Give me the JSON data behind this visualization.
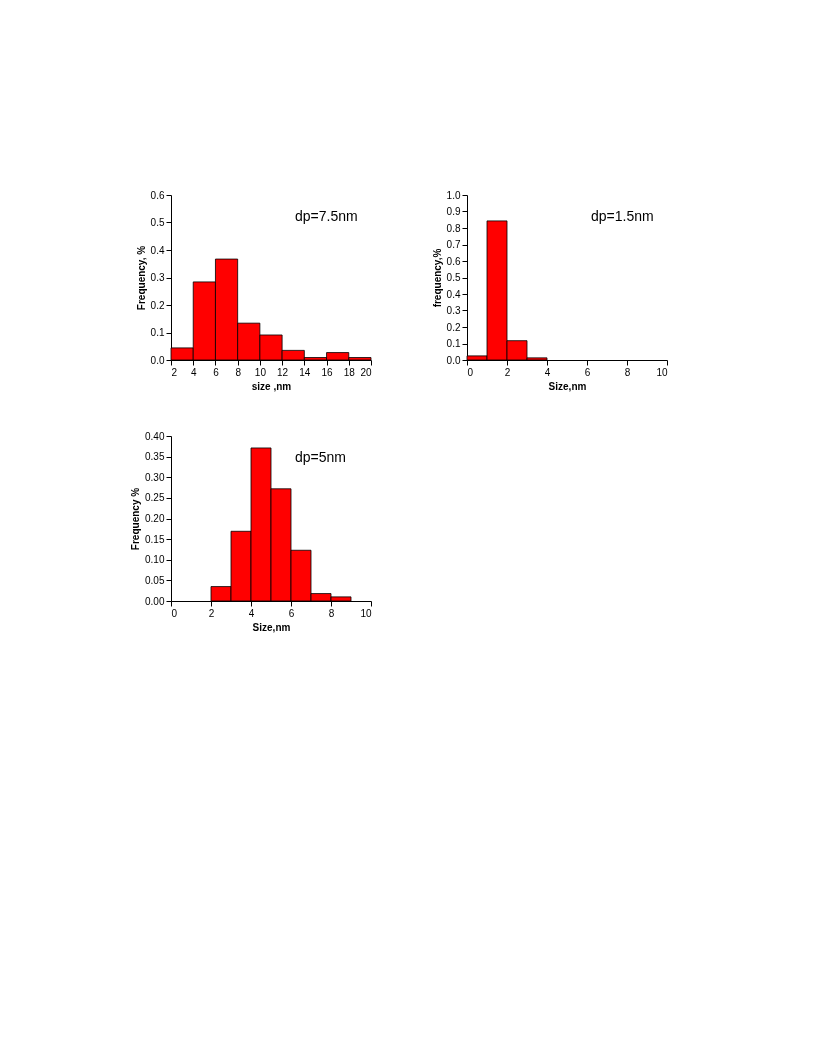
{
  "chart_data": [
    {
      "type": "histogram",
      "xlabel": "size ,nm",
      "ylabel": "Frequency, %",
      "annotations": [
        "dp=7.5nm"
      ],
      "color": "#ff0000",
      "bins": [
        2,
        4,
        6,
        8,
        10,
        12,
        14,
        16,
        18,
        20
      ],
      "values": [
        0.044,
        0.284,
        0.367,
        0.134,
        0.091,
        0.035,
        0.009,
        0.027,
        0.009
      ],
      "xlim": [
        2,
        20
      ],
      "xticks": [
        2,
        4,
        6,
        8,
        10,
        12,
        14,
        16,
        18,
        20
      ],
      "ylim": [
        0,
        0.6
      ],
      "yticks": [
        {
          "value": 0,
          "label": "0.0"
        },
        0.1,
        0.2,
        0.3,
        0.4,
        0.5,
        0.6
      ],
      "grid": false
    },
    {
      "type": "histogram",
      "xlabel": "Size,nm",
      "ylabel": "frequency,%",
      "annotations": [
        "dp=1.5nm"
      ],
      "color": "#ff0000",
      "bins": [
        0,
        1,
        2,
        3,
        4
      ],
      "values": [
        0.025,
        0.843,
        0.117,
        0.013
      ],
      "xlim": [
        0,
        10
      ],
      "xticks": [
        0,
        2,
        4,
        6,
        8,
        10
      ],
      "ylim": [
        0,
        1.0
      ],
      "yticks": [
        {
          "value": 0,
          "label": "0.0"
        },
        0.1,
        0.2,
        0.3,
        0.4,
        0.5,
        0.6,
        0.7,
        0.8,
        0.9,
        {
          "value": 1.0,
          "label": "1.0"
        }
      ],
      "grid": false
    },
    {
      "type": "histogram",
      "xlabel": "Size,nm",
      "ylabel": "Frequency %",
      "annotations": [
        "dp=5nm"
      ],
      "color": "#ff0000",
      "bins": [
        2,
        3,
        4,
        5,
        6,
        7,
        8,
        9
      ],
      "values": [
        0.035,
        0.169,
        0.371,
        0.272,
        0.123,
        0.018,
        0.01
      ],
      "xlim": [
        0,
        10
      ],
      "xticks": [
        0,
        2,
        4,
        6,
        8,
        10
      ],
      "ylim": [
        0,
        0.4
      ],
      "yticks": [
        {
          "value": 0,
          "label": "0.00"
        },
        {
          "value": 0.05,
          "label": "0.05"
        },
        {
          "value": 0.1,
          "label": "0.10"
        },
        {
          "value": 0.15,
          "label": "0.15"
        },
        {
          "value": 0.2,
          "label": "0.20"
        },
        {
          "value": 0.25,
          "label": "0.25"
        },
        {
          "value": 0.3,
          "label": "0.30"
        },
        {
          "value": 0.35,
          "label": "0.35"
        },
        {
          "value": 0.4,
          "label": "0.40"
        }
      ],
      "grid": false
    }
  ]
}
